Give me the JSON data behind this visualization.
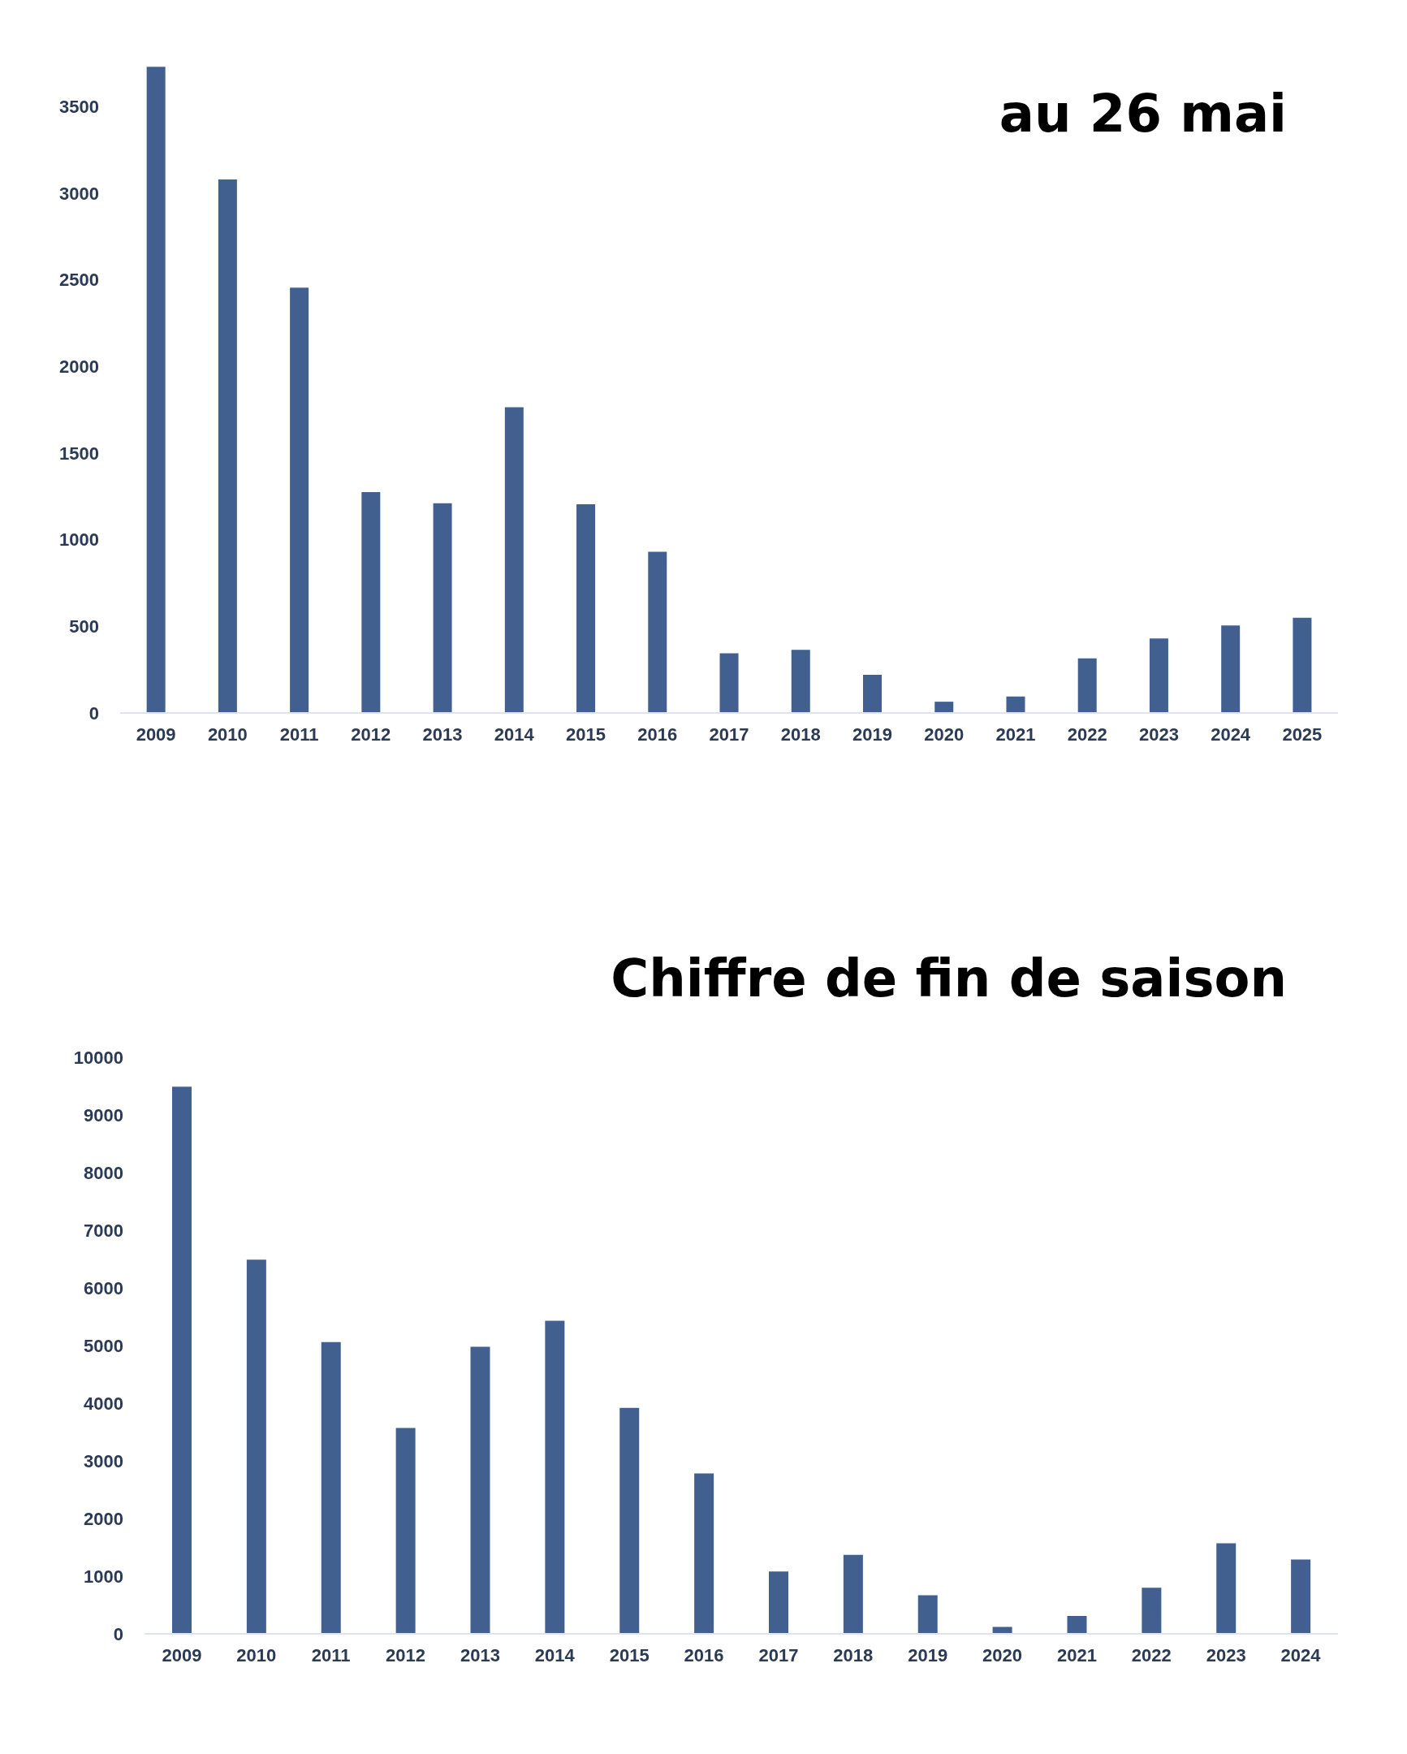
{
  "chart_data": [
    {
      "type": "bar",
      "title": "au 26 mai",
      "categories": [
        "2009",
        "2010",
        "2011",
        "2012",
        "2013",
        "2014",
        "2015",
        "2016",
        "2017",
        "2018",
        "2019",
        "2020",
        "2021",
        "2022",
        "2023",
        "2024",
        "2025"
      ],
      "values": [
        3730,
        3080,
        2455,
        1275,
        1210,
        1765,
        1205,
        930,
        345,
        365,
        220,
        65,
        95,
        315,
        430,
        505,
        550
      ],
      "color": "#41608f",
      "ylim": [
        0,
        3750
      ],
      "yticks": [
        0,
        500,
        1000,
        1500,
        2000,
        2500,
        3000,
        3500
      ]
    },
    {
      "type": "bar",
      "title": "Chiffre de fin de saison",
      "categories": [
        "2009",
        "2010",
        "2011",
        "2012",
        "2013",
        "2014",
        "2015",
        "2016",
        "2017",
        "2018",
        "2019",
        "2020",
        "2021",
        "2022",
        "2023",
        "2024"
      ],
      "values": [
        9490,
        6490,
        5060,
        3570,
        4980,
        5430,
        3920,
        2780,
        1080,
        1370,
        670,
        120,
        310,
        800,
        1570,
        1290
      ],
      "color": "#41608f",
      "ylim": [
        0,
        10000
      ],
      "yticks": [
        0,
        1000,
        2000,
        3000,
        4000,
        5000,
        6000,
        7000,
        8000,
        9000,
        10000
      ]
    }
  ]
}
